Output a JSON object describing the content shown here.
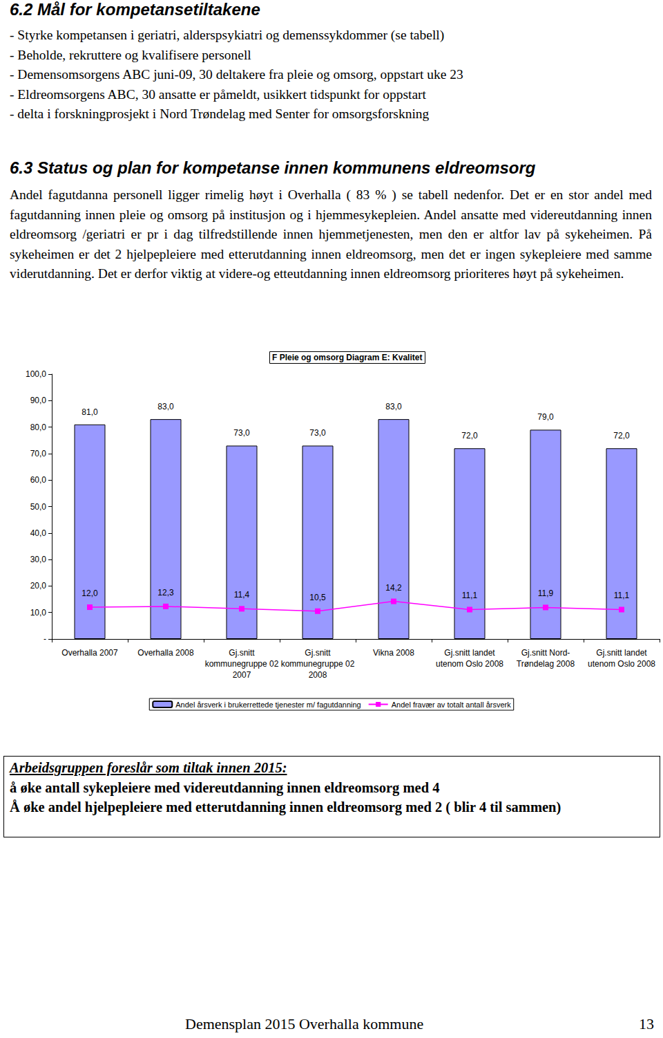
{
  "document": {
    "sections": [
      {
        "heading": "6.2 Mål for kompetansetiltakene",
        "bullets": [
          "- Styrke kompetansen i geriatri, alderspsykiatri og demenssykdommer (se tabell)",
          "- Beholde, rekruttere og kvalifisere personell",
          "- Demensomsorgens ABC juni-09, 30 deltakere fra pleie og omsorg, oppstart uke 23",
          "- Eldreomsorgens ABC, 30 ansatte er påmeldt, usikkert tidspunkt for oppstart",
          "- delta i forskningprosjekt i Nord Trøndelag med Senter for omsorgsforskning"
        ]
      },
      {
        "heading": "6.3 Status og plan for kompetanse innen kommunens eldreomsorg",
        "paragraph": "Andel fagutdanna personell ligger rimelig høyt i Overhalla ( 83 % ) se tabell nedenfor. Det er en stor andel med fagutdanning innen pleie og omsorg på institusjon og i hjemmesykepleien. Andel ansatte med videreutdanning innen eldreomsorg /geriatri er pr i dag tilfredstillende innen hjemmetjenesten, men den er altfor lav på sykeheimen. På sykeheimen er det 2 hjelpepleiere med etterutdanning innen eldreomsorg, men det er ingen sykepleiere med samme viderutdanning. Det er derfor viktig at videre-og etteutdanning innen eldreomsorg prioriteres høyt på sykeheimen."
      }
    ],
    "proposal": {
      "title": "Arbeidsgruppen foreslår som tiltak innen 2015:",
      "lines": [
        "å øke antall sykepleiere med videreutdanning innen eldreomsorg med 4",
        "Å øke andel hjelpepleiere med etterutdanning innen eldreomsorg med 2 ( blir 4 til sammen)"
      ]
    },
    "footer": {
      "text": "Demensplan 2015 Overhalla kommune",
      "page": "13"
    }
  },
  "chart_data": {
    "type": "bar",
    "title": "F Pleie og omsorg Diagram E: Kvalitet",
    "categories": [
      "Overhalla 2007",
      "Overhalla 2008",
      "Gj.snitt\nkommunegruppe 02\n2007",
      "Gj.snitt\nkommunegruppe 02\n2008",
      "Vikna 2008",
      "Gj.snitt landet\nutenom Oslo 2008",
      "Gj.snitt Nord-\nTrøndelag 2008",
      "Gj.snitt landet\nutenom Oslo 2008"
    ],
    "series": [
      {
        "name": "Andel årsverk i brukerrettede tjenester m/ fagutdanning",
        "type": "bar",
        "color": "#9999ff",
        "values": [
          81.0,
          83.0,
          73.0,
          73.0,
          83.0,
          72.0,
          79.0,
          72.0
        ],
        "value_labels": [
          "81,0",
          "83,0",
          "73,0",
          "73,0",
          "83,0",
          "72,0",
          "79,0",
          "72,0"
        ]
      },
      {
        "name": "Andel fravær av totalt antall årsverk",
        "type": "line",
        "color": "#ff00ff",
        "marker": "square",
        "values": [
          12.0,
          12.3,
          11.4,
          10.5,
          14.2,
          11.1,
          11.9,
          11.1
        ],
        "value_labels": [
          "12,0",
          "12,3",
          "11,4",
          "10,5",
          "14,2",
          "11,1",
          "11,9",
          "11,1"
        ]
      }
    ],
    "ylim": [
      0,
      100
    ],
    "yticks": [
      {
        "value": 0,
        "label": "-"
      },
      {
        "value": 10,
        "label": "10,0"
      },
      {
        "value": 20,
        "label": "20,0"
      },
      {
        "value": 30,
        "label": "30,0"
      },
      {
        "value": 40,
        "label": "40,0"
      },
      {
        "value": 50,
        "label": "50,0"
      },
      {
        "value": 60,
        "label": "60,0"
      },
      {
        "value": 70,
        "label": "70,0"
      },
      {
        "value": 80,
        "label": "80,0"
      },
      {
        "value": 90,
        "label": "90,0"
      },
      {
        "value": 100,
        "label": "100,0"
      }
    ],
    "grid": false,
    "legend": "bottom",
    "data_labels": true
  }
}
